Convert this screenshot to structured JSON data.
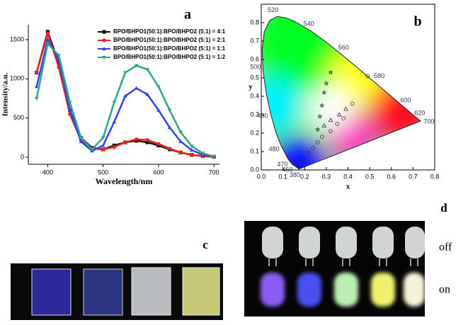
{
  "chart_data": [
    {
      "type": "line",
      "label": "a",
      "x_label": "Wavelength/nm",
      "y_label": "Intensity/a.u.",
      "x": [
        380,
        400,
        420,
        440,
        460,
        480,
        500,
        520,
        540,
        560,
        580,
        600,
        620,
        640,
        660,
        680,
        700
      ],
      "xlim": [
        365,
        710
      ],
      "xticks": [
        400,
        500,
        600,
        700
      ],
      "ylim": [
        -90,
        1690
      ],
      "yticks": [
        0,
        500,
        1000,
        1500
      ],
      "legend": "upper right",
      "series": [
        {
          "name": "BPO/BHPO1(50:1):BPO/BHPO2 (5:1) = 4:1",
          "color": "#111111",
          "marker": "square",
          "values": [
            1080,
            1600,
            1200,
            600,
            250,
            120,
            100,
            150,
            190,
            210,
            190,
            150,
            100,
            60,
            30,
            15,
            5
          ]
        },
        {
          "name": "BPO/BHPO1(50:1):BPO/BHPO2 (5:1) = 2:1",
          "color": "#e8231e",
          "marker": "circle",
          "values": [
            1080,
            1580,
            1150,
            550,
            220,
            110,
            100,
            130,
            190,
            230,
            220,
            170,
            110,
            60,
            30,
            15,
            5
          ]
        },
        {
          "name": "BPO/BHPO1(50:1):BPO/BHPO2 (5:1) = 1:1",
          "color": "#3344ee",
          "marker": "triangle",
          "values": [
            900,
            1500,
            1250,
            600,
            200,
            80,
            150,
            450,
            780,
            880,
            800,
            600,
            380,
            200,
            90,
            30,
            10
          ]
        },
        {
          "name": "BPO/BHPO1(50:1):BPO/BHPO2 (5:1) = 1:2",
          "color": "#2aa88a",
          "marker": "down-triangle",
          "values": [
            750,
            1450,
            1300,
            700,
            250,
            100,
            250,
            700,
            1080,
            1170,
            1120,
            900,
            600,
            320,
            140,
            50,
            10
          ]
        }
      ]
    },
    {
      "type": "scatter",
      "label": "b",
      "x_label": "x",
      "y_label": "y",
      "xlim": [
        0,
        0.8
      ],
      "xticks": [
        {
          "value": 0,
          "label": "0.0"
        },
        0.1,
        0.2,
        0.3,
        0.4,
        0.5,
        0.6,
        0.7,
        0.8
      ],
      "ylim": [
        0,
        0.9
      ],
      "yticks": [
        {
          "value": 0,
          "label": "0.0"
        },
        0.1,
        0.2,
        0.3,
        0.4,
        0.5,
        0.6,
        0.7,
        0.8
      ],
      "locus": {
        "labels": [
          "380",
          "460",
          "470",
          "480",
          null,
          "490",
          null,
          "500",
          null,
          null,
          null,
          "520",
          null,
          null,
          "540",
          null,
          "560",
          null,
          "580",
          null,
          "600",
          "620",
          null,
          "700"
        ],
        "x": [
          0.1741,
          0.144,
          0.1241,
          0.0913,
          0.0687,
          0.0454,
          0.0235,
          0.0082,
          0.0039,
          0.0139,
          0.0389,
          0.0743,
          0.1142,
          0.1547,
          0.2296,
          0.3016,
          0.3731,
          0.4441,
          0.5125,
          0.5752,
          0.627,
          0.6915,
          0.726,
          0.7347
        ],
        "y": [
          0.005,
          0.0297,
          0.0578,
          0.1327,
          0.2007,
          0.295,
          0.4127,
          0.5384,
          0.6548,
          0.7502,
          0.812,
          0.8338,
          0.8262,
          0.8059,
          0.7543,
          0.6923,
          0.6245,
          0.5547,
          0.4866,
          0.4242,
          0.3725,
          0.3083,
          0.274,
          0.2653
        ]
      },
      "series": [
        {
          "marker": "star",
          "color": "#333333",
          "x": [
            0.32,
            0.3,
            0.29,
            0.28,
            0.27,
            0.26
          ],
          "y": [
            0.53,
            0.47,
            0.42,
            0.35,
            0.29,
            0.22
          ]
        },
        {
          "marker": "triangle",
          "color": "#333333",
          "x": [
            0.39,
            0.36,
            0.32,
            0.29
          ],
          "y": [
            0.33,
            0.3,
            0.27,
            0.24
          ]
        },
        {
          "marker": "circle",
          "color": "#333333",
          "x": [
            0.49,
            0.42,
            0.38,
            0.35,
            0.32,
            0.28,
            0.26,
            0.24,
            0.22,
            0.18
          ],
          "y": [
            0.51,
            0.36,
            0.28,
            0.25,
            0.21,
            0.18,
            0.15,
            0.12,
            0.09,
            0.04
          ]
        }
      ]
    }
  ],
  "photos": {
    "c": {
      "label": "c"
    },
    "d": {
      "label": "d",
      "row_labels": [
        "off",
        "on"
      ]
    }
  }
}
